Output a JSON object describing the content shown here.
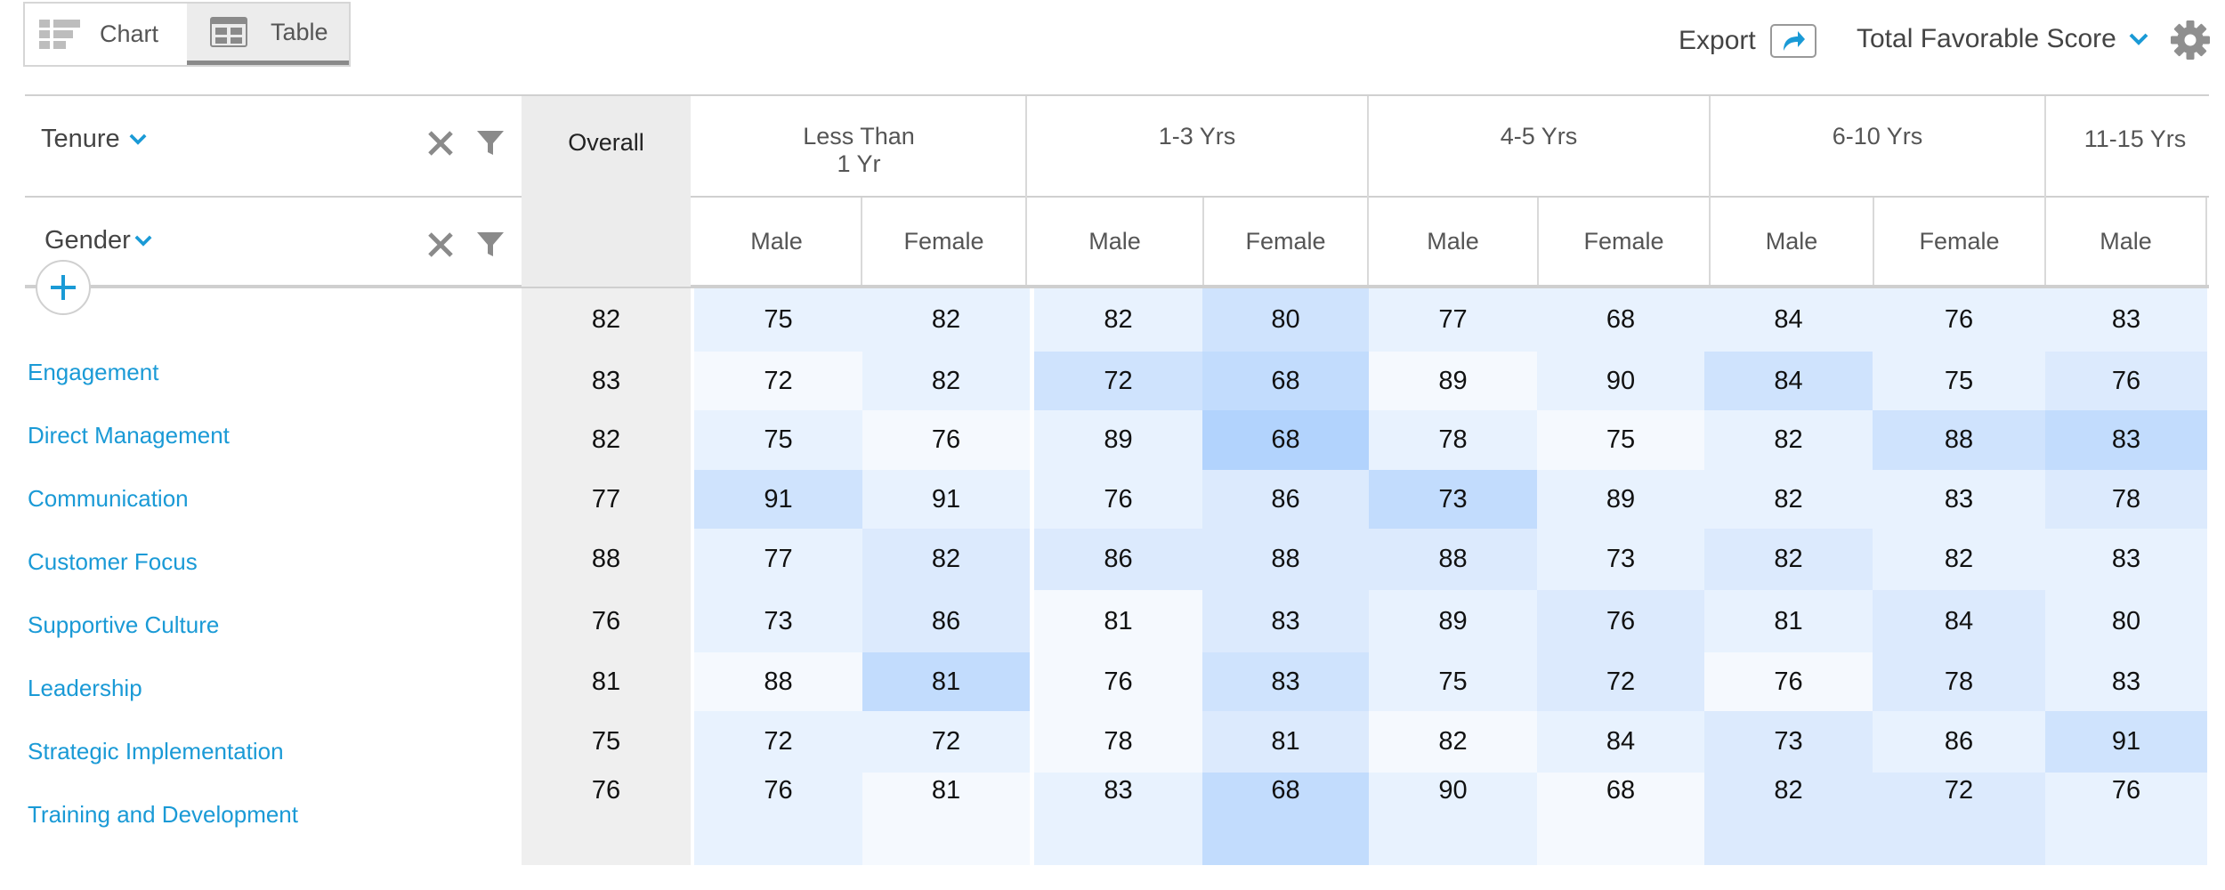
{
  "toolbar": {
    "chart_label": "Chart",
    "table_label": "Table",
    "export_label": "Export",
    "score_label": "Total Favorable Score"
  },
  "icons": {
    "chart": "chart-icon",
    "table": "table-icon",
    "export": "share-arrow-icon",
    "dropdown": "chevron-down-icon",
    "settings": "gear-icon",
    "clear": "close-icon",
    "filter": "filter-icon",
    "add": "plus-icon"
  },
  "colors": {
    "accent": "#1a9ad6",
    "heat_scale": [
      "#f5f9fe",
      "#e8f2fe",
      "#dceafd",
      "#cfe3fd",
      "#c2dcfd",
      "#b2d3fd"
    ]
  },
  "dimensions": {
    "row_dim": "Tenure",
    "col_dim": "Gender"
  },
  "table": {
    "overall_label": "Overall",
    "groups": [
      {
        "label": [
          "Less Than",
          "1 Yr"
        ],
        "subs": [
          "Male",
          "Female"
        ]
      },
      {
        "label": [
          "1-3 Yrs"
        ],
        "subs": [
          "Male",
          "Female"
        ]
      },
      {
        "label": [
          "4-5 Yrs"
        ],
        "subs": [
          "Male",
          "Female"
        ]
      },
      {
        "label": [
          "6-10 Yrs"
        ],
        "subs": [
          "Male",
          "Female"
        ]
      },
      {
        "label": [
          "11-15 Yrs"
        ],
        "subs": [
          "Male"
        ]
      }
    ],
    "rows": [
      {
        "label": "",
        "overall": 82,
        "values": [
          75,
          82,
          82,
          80,
          77,
          68,
          84,
          76,
          83
        ],
        "shades": [
          1,
          1,
          1,
          3,
          1,
          1,
          1,
          1,
          1
        ]
      },
      {
        "label": "Engagement",
        "overall": 83,
        "values": [
          72,
          82,
          72,
          68,
          89,
          90,
          84,
          75,
          76
        ],
        "shades": [
          0,
          1,
          3,
          4,
          0,
          1,
          3,
          1,
          2
        ]
      },
      {
        "label": "Direct Management",
        "overall": 82,
        "values": [
          75,
          76,
          89,
          68,
          78,
          75,
          82,
          88,
          83
        ],
        "shades": [
          1,
          0,
          1,
          5,
          1,
          0,
          1,
          3,
          4
        ]
      },
      {
        "label": "Communication",
        "overall": 77,
        "values": [
          91,
          91,
          76,
          86,
          73,
          89,
          82,
          83,
          78
        ],
        "shades": [
          3,
          1,
          1,
          2,
          4,
          1,
          1,
          1,
          2
        ]
      },
      {
        "label": "Customer Focus",
        "overall": 88,
        "values": [
          77,
          82,
          86,
          88,
          88,
          73,
          82,
          82,
          83
        ],
        "shades": [
          1,
          2,
          2,
          2,
          2,
          1,
          2,
          1,
          1
        ]
      },
      {
        "label": "Supportive Culture",
        "overall": 76,
        "values": [
          73,
          86,
          81,
          83,
          89,
          76,
          81,
          84,
          80
        ],
        "shades": [
          1,
          2,
          0,
          2,
          1,
          2,
          1,
          2,
          1
        ]
      },
      {
        "label": "Leadership",
        "overall": 81,
        "values": [
          88,
          81,
          76,
          83,
          75,
          72,
          76,
          78,
          83
        ],
        "shades": [
          0,
          4,
          0,
          3,
          1,
          2,
          0,
          2,
          1
        ]
      },
      {
        "label": "Strategic Implementation",
        "overall": 75,
        "values": [
          72,
          72,
          78,
          81,
          82,
          84,
          73,
          86,
          91
        ],
        "shades": [
          1,
          1,
          0,
          2,
          0,
          1,
          2,
          1,
          3
        ]
      },
      {
        "label": "Training and Development",
        "overall": 76,
        "values": [
          76,
          81,
          83,
          68,
          90,
          68,
          82,
          72,
          76
        ],
        "shades": [
          1,
          0,
          1,
          4,
          1,
          0,
          2,
          2,
          1
        ]
      }
    ]
  }
}
